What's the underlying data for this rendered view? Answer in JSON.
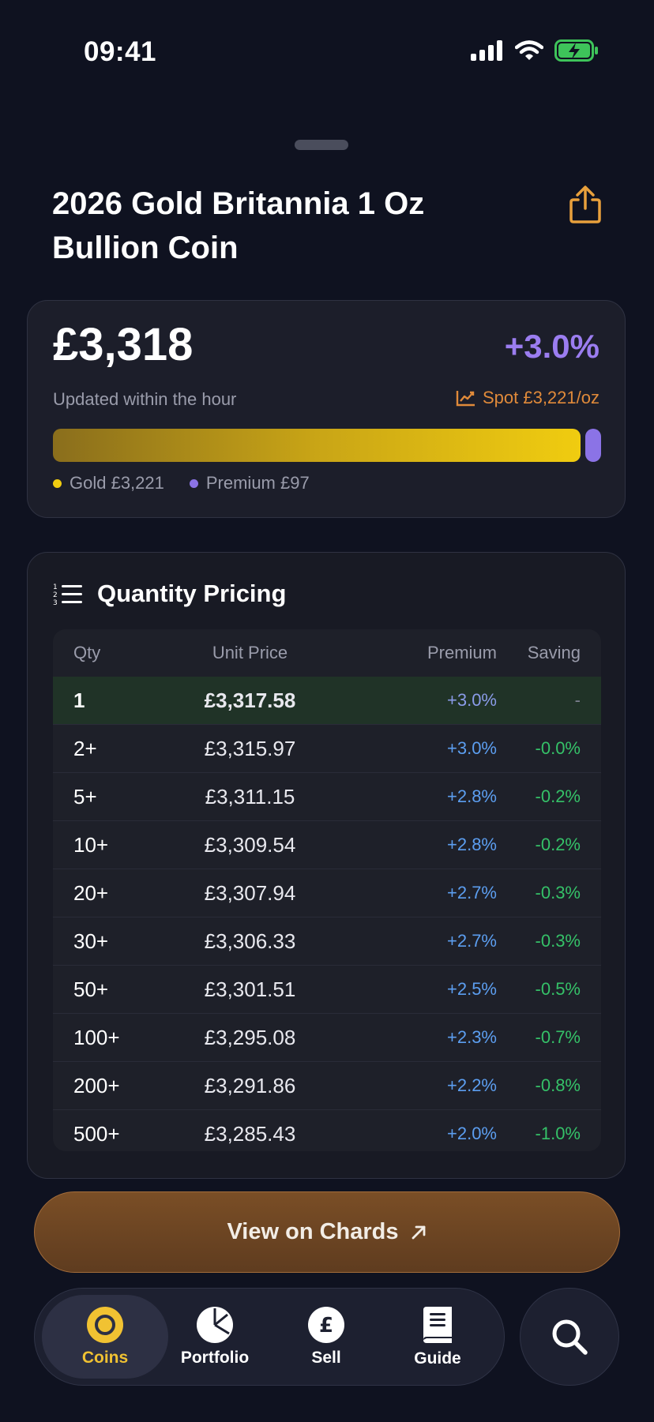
{
  "status": {
    "time": "09:41"
  },
  "coin": {
    "title": "2026 Gold Britannia 1 Oz Bullion Coin"
  },
  "price": {
    "value": "£3,318",
    "change": "+3.0%",
    "updated": "Updated within the hour",
    "spot": "Spot £3,221/oz",
    "gold_fraction": 0.971,
    "legend_gold": "Gold £3,221",
    "legend_premium": "Premium £97",
    "gold_color": "#f0cc10",
    "premium_color": "#8b73e6"
  },
  "quantity": {
    "title": "Quantity Pricing",
    "headers": {
      "qty": "Qty",
      "unit": "Unit Price",
      "premium": "Premium",
      "saving": "Saving"
    },
    "rows": [
      {
        "qty": "1",
        "unit": "£3,317.58",
        "premium": "+3.0%",
        "saving": "-"
      },
      {
        "qty": "2+",
        "unit": "£3,315.97",
        "premium": "+3.0%",
        "saving": "-0.0%"
      },
      {
        "qty": "5+",
        "unit": "£3,311.15",
        "premium": "+2.8%",
        "saving": "-0.2%"
      },
      {
        "qty": "10+",
        "unit": "£3,309.54",
        "premium": "+2.8%",
        "saving": "-0.2%"
      },
      {
        "qty": "20+",
        "unit": "£3,307.94",
        "premium": "+2.7%",
        "saving": "-0.3%"
      },
      {
        "qty": "30+",
        "unit": "£3,306.33",
        "premium": "+2.7%",
        "saving": "-0.3%"
      },
      {
        "qty": "50+",
        "unit": "£3,301.51",
        "premium": "+2.5%",
        "saving": "-0.5%"
      },
      {
        "qty": "100+",
        "unit": "£3,295.08",
        "premium": "+2.3%",
        "saving": "-0.7%"
      },
      {
        "qty": "200+",
        "unit": "£3,291.86",
        "premium": "+2.2%",
        "saving": "-0.8%"
      },
      {
        "qty": "500+",
        "unit": "£3,285.43",
        "premium": "+2.0%",
        "saving": "-1.0%"
      }
    ]
  },
  "cta": {
    "label": "View on Chards"
  },
  "tabs": {
    "coins": "Coins",
    "portfolio": "Portfolio",
    "sell": "Sell",
    "guide": "Guide"
  },
  "icons": {
    "share": "share-icon",
    "spot": "trend-chart-icon",
    "list": "numbered-list-icon",
    "external": "arrow-up-right-icon",
    "coins": "coin-icon",
    "portfolio": "pie-chart-icon",
    "sell": "pound-icon",
    "guide": "book-icon",
    "search": "search-icon"
  }
}
